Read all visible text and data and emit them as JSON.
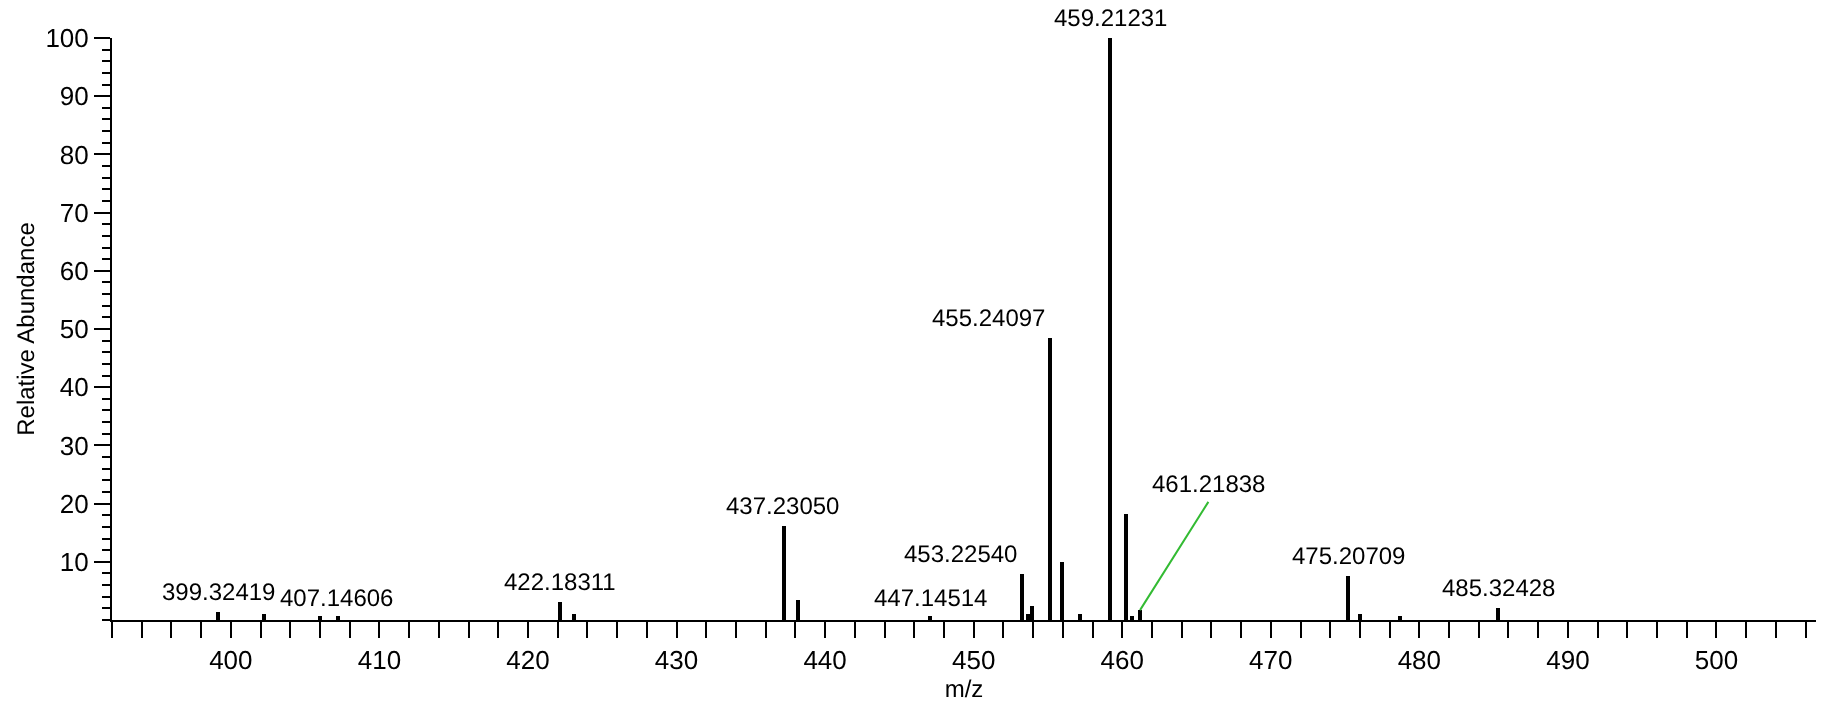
{
  "chart_data": {
    "type": "bar",
    "xlabel": "m/z",
    "ylabel": "Relative Abundance",
    "x": [
      399.2,
      402.3,
      406.0,
      407.2,
      422.1,
      423.1,
      437.2,
      438.2,
      447.1,
      453.2,
      453.6,
      454.0,
      455.2,
      456.0,
      457.1,
      459.2,
      460.2,
      460.6,
      461.2,
      475.2,
      476.0,
      478.7,
      485.3
    ],
    "series": [
      {
        "color": "#000000",
        "values": [
          1.5,
          1.1,
          0.7,
          0.5,
          3.1,
          0.9,
          16.1,
          3.4,
          0.5,
          7.9,
          0.9,
          2.4,
          48.5,
          10.1,
          1.1,
          100,
          18.3,
          0.7,
          1.7,
          7.4,
          1.1,
          0.7,
          2.1
        ]
      }
    ],
    "annotations": [
      {
        "text": "399.32419",
        "x": 399.2,
        "y": 1.5
      },
      {
        "text": "407.14606",
        "x": 407.2,
        "y": 0.5
      },
      {
        "text": "422.18311",
        "x": 422.1,
        "y": 3.1
      },
      {
        "text": "437.23050",
        "x": 437.2,
        "y": 16.1
      },
      {
        "text": "447.14514",
        "x": 447.1,
        "y": 0.5
      },
      {
        "text": "453.22540",
        "x": 453.2,
        "y": 7.9
      },
      {
        "text": "455.24097",
        "x": 455.2,
        "y": 48.5
      },
      {
        "text": "459.21231",
        "x": 459.2,
        "y": 100
      },
      {
        "text": "461.21838",
        "x": 461.2,
        "y": 1.7
      },
      {
        "text": "475.20709",
        "x": 475.2,
        "y": 7.4
      },
      {
        "text": "485.32428",
        "x": 485.3,
        "y": 2.1
      }
    ],
    "xlim": [
      392.0,
      506.7
    ],
    "xticks": [
      400,
      410,
      420,
      430,
      440,
      450,
      460,
      470,
      480,
      490,
      500
    ],
    "ylim": [
      0,
      100
    ],
    "yticks": [
      10,
      20,
      30,
      40,
      50,
      60,
      70,
      80,
      90,
      100
    ],
    "tick_labels": "xy"
  }
}
